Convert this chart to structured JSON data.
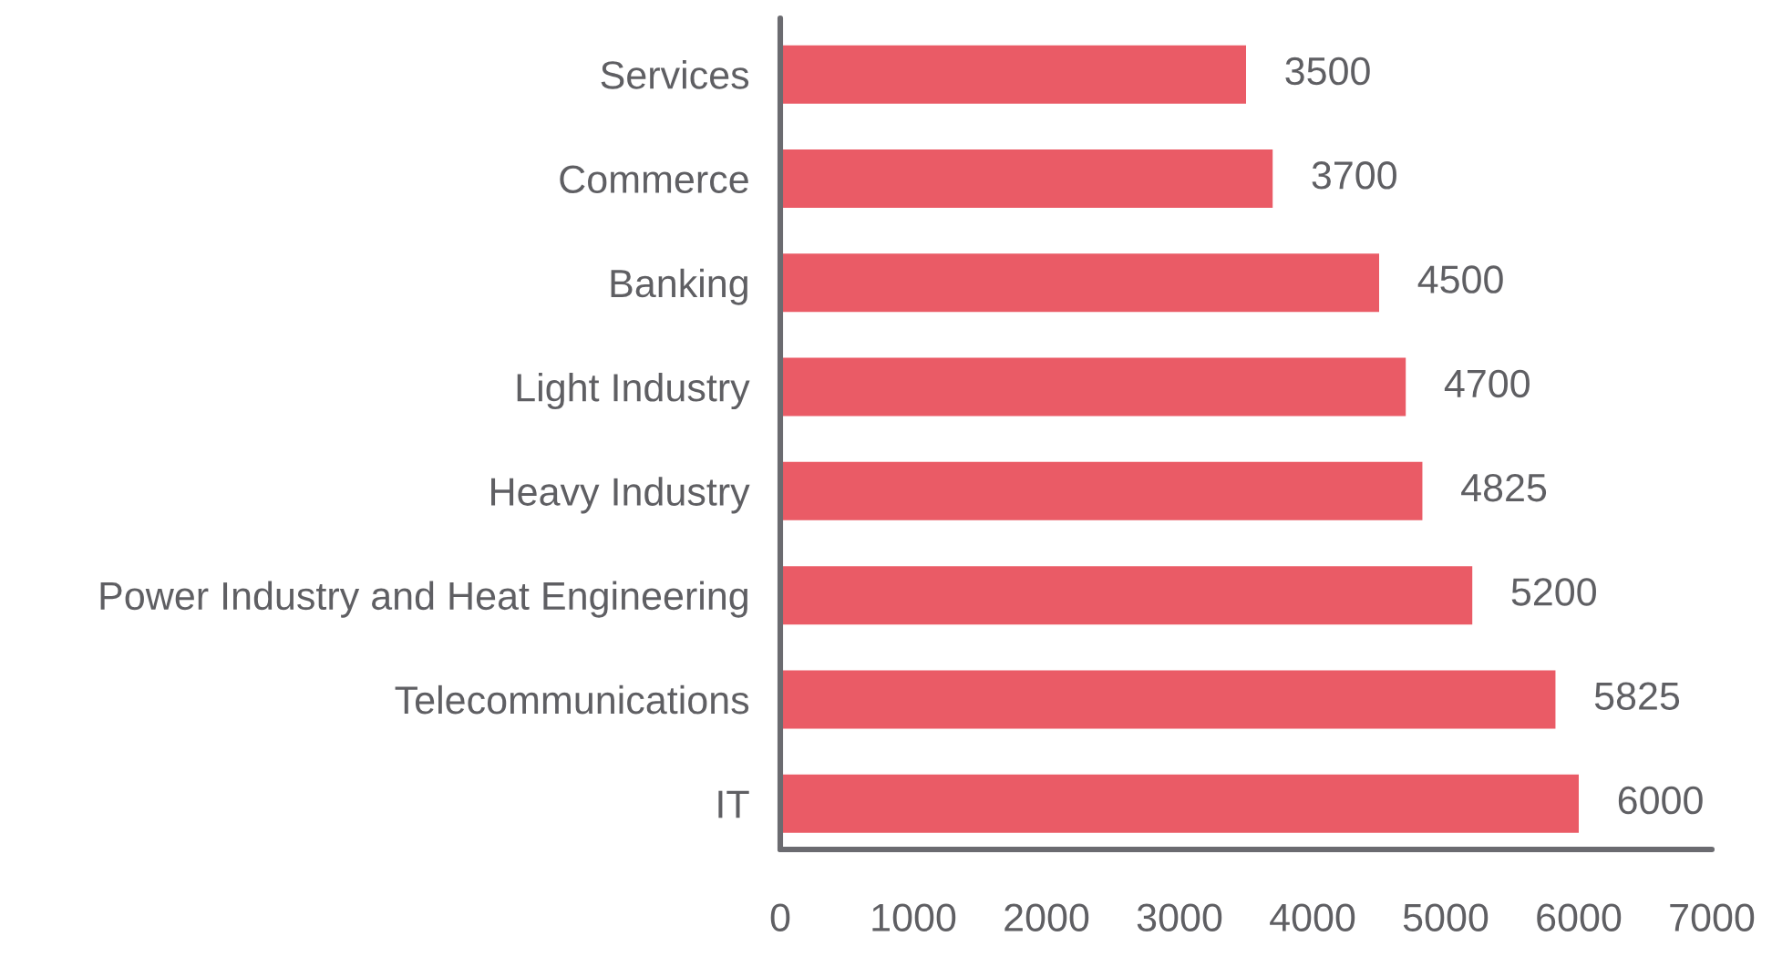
{
  "chart_data": {
    "type": "bar",
    "orientation": "horizontal",
    "categories": [
      "Services",
      "Commerce",
      "Banking",
      "Light Industry",
      "Heavy Industry",
      "Power Industry and Heat Engineering",
      "Telecommunications",
      "IT"
    ],
    "values": [
      3500,
      3700,
      4500,
      4700,
      4825,
      5200,
      5825,
      6000
    ],
    "color": "#ea5b66",
    "xlim": [
      0,
      7000
    ],
    "xticks": [
      0,
      1000,
      2000,
      3000,
      4000,
      5000,
      6000,
      7000
    ],
    "data_labels": true
  }
}
